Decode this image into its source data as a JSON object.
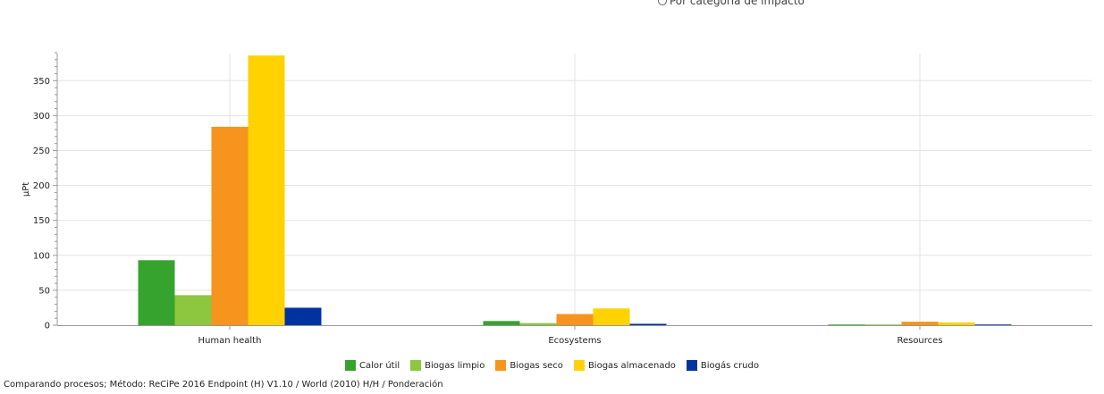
{
  "top_option": {
    "label": "Por categoría de impacto"
  },
  "chart_data": {
    "type": "bar",
    "categories": [
      "Human health",
      "Ecosystems",
      "Resources"
    ],
    "series": [
      {
        "name": "Calor útil",
        "color": "#36a32f",
        "values": [
          93,
          6,
          1
        ]
      },
      {
        "name": "Biogas limpio",
        "color": "#8dc63f",
        "values": [
          43,
          3,
          1
        ]
      },
      {
        "name": "Biogas seco",
        "color": "#f7941d",
        "values": [
          284,
          16,
          5
        ]
      },
      {
        "name": "Biogas almacenado",
        "color": "#ffd200",
        "values": [
          386,
          24,
          4
        ]
      },
      {
        "name": "Biogás crudo",
        "color": "#0033a0",
        "values": [
          25,
          2,
          1
        ]
      }
    ],
    "ylabel": "µPt",
    "ylim": [
      0,
      390
    ],
    "yticks": [
      0,
      50,
      100,
      150,
      200,
      250,
      300,
      350
    ],
    "grid": true,
    "legend_position": "bottom-center"
  },
  "footer": {
    "text": "Comparando procesos; Método: ReCiPe 2016 Endpoint (H) V1.10 / World (2010) H/H / Ponderación"
  }
}
